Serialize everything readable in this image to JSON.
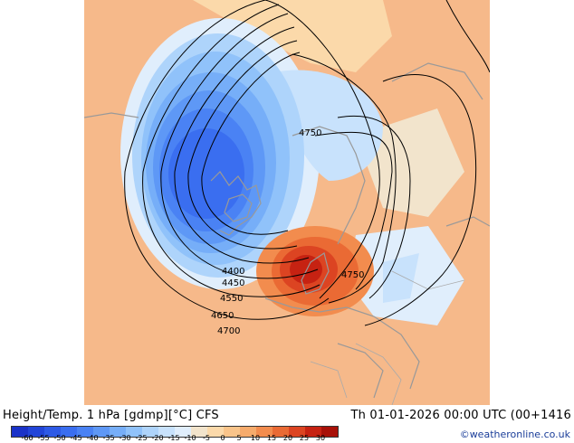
{
  "title_left": "Height/Temp. 1 hPa [gdmp][°C] CFS",
  "title_right": "Th 01-01-2026 00:00 UTC (00+1416",
  "credit": "©weatheronline.co.uk",
  "colorbar": {
    "colors": [
      "#1a32c8",
      "#2245d8",
      "#2e5ae6",
      "#3a6ef0",
      "#4a82f4",
      "#5e98f6",
      "#76aef8",
      "#90c2fa",
      "#aed4fb",
      "#c8e2fc",
      "#e0eefc",
      "#f2e4cc",
      "#fbd9aa",
      "#f9c48a",
      "#f6ab6c",
      "#f28c4e",
      "#ea6a34",
      "#dc4422",
      "#c62212",
      "#a81008"
    ],
    "tick_labels": [
      "-60",
      "-55",
      "-50",
      "-45",
      "-40",
      "-35",
      "-30",
      "-25",
      "-20",
      "-15",
      "-10",
      "-5",
      "0",
      "5",
      "10",
      "15",
      "20",
      "25",
      "30"
    ]
  },
  "contour_labels": [
    "4400",
    "4450",
    "4550",
    "4650",
    "4700",
    "4750",
    "4750"
  ],
  "colors": {
    "land_outline": "#999999",
    "contour": "#000000",
    "background": "#f6b98a"
  }
}
